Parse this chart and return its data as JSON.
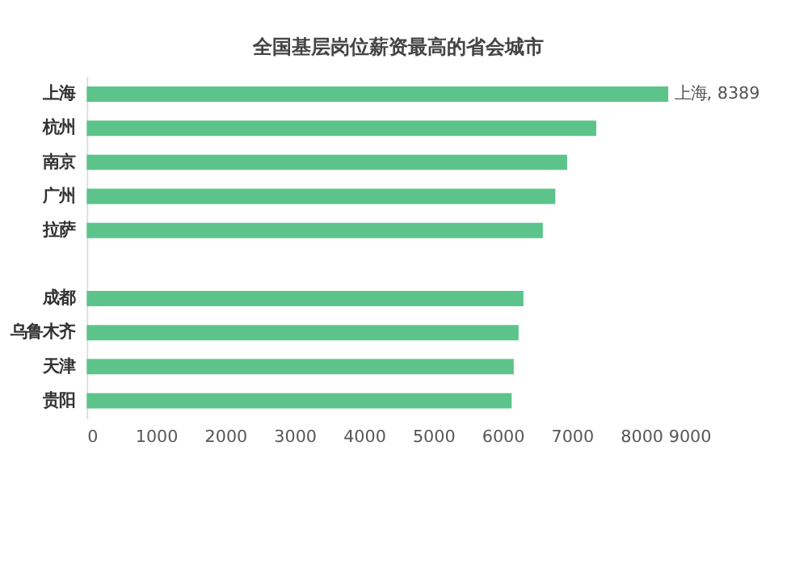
{
  "chart_data": {
    "type": "bar",
    "orientation": "horizontal",
    "title": "全国基层岗位薪资最高的省会城市",
    "categories": [
      "上海",
      "杭州",
      "南京",
      "广州",
      "拉萨",
      null,
      "成都",
      "乌鲁木齐",
      "天津",
      "贵阳"
    ],
    "values": [
      8389,
      7350,
      6930,
      6760,
      6580,
      null,
      6300,
      6230,
      6160,
      6130
    ],
    "value_labels": [
      "上海, 8389",
      null,
      null,
      null,
      null,
      null,
      null,
      null,
      null,
      null
    ],
    "color": "#5cc48a",
    "xlim": [
      0,
      9000
    ],
    "xticks": [
      0,
      1000,
      2000,
      3000,
      4000,
      5000,
      6000,
      7000,
      8000,
      9000
    ],
    "grid": false
  }
}
